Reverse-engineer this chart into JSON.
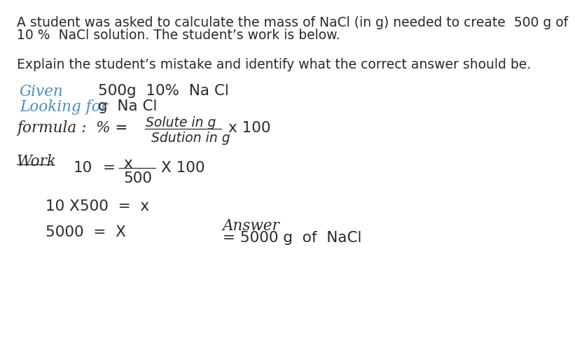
{
  "bg_color": "#ffffff",
  "header_line1": "A student was asked to calculate the mass of NaCl (in g) needed to create  500 g of",
  "header_line2": "10 %  NaCl solution. The student’s work is below.",
  "prompt_text": "Explain the student’s mistake and identify what the correct answer should be.",
  "given_label": "Given",
  "given_value": "500g  10%  Na Cl",
  "looking_label": "Looking for",
  "looking_value": "g  Na Cl",
  "formula_prefix": "formula :  % =",
  "formula_num": "Solute in g",
  "formula_den": "Sdution in g",
  "formula_x100": "x 100",
  "work_label": "Work",
  "work_eq_left": "10",
  "work_eq_sign": "=",
  "work_frac_num": "x",
  "work_frac_den": "500",
  "work_x100": "X 100",
  "work_line2": "10 X500  =  x",
  "work_line3_left": "5000  =  X",
  "answer_label": "Answer",
  "answer_value": "= 5000 g  of  NaCl",
  "hc": "#2a2a2a",
  "bc": "#4a8fc0",
  "fs_header": 13.5,
  "fs_hand": 15.5,
  "fs_hand_sm": 13.5
}
